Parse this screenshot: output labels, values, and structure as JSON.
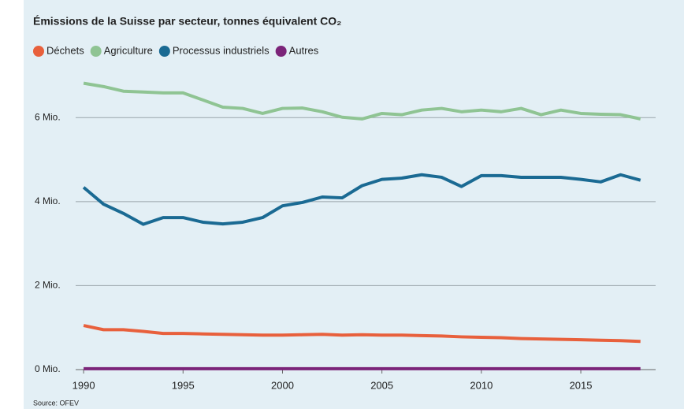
{
  "chart_data": {
    "type": "line",
    "title": "Émissions de la Suisse par secteur, tonnes équivalent CO₂",
    "source": "Source: OFEV",
    "x": [
      1990,
      1991,
      1992,
      1993,
      1994,
      1995,
      1996,
      1997,
      1998,
      1999,
      2000,
      2001,
      2002,
      2003,
      2004,
      2005,
      2006,
      2007,
      2008,
      2009,
      2010,
      2011,
      2012,
      2013,
      2014,
      2015,
      2016,
      2017,
      2018
    ],
    "series": [
      {
        "name": "Déchets",
        "color": "#e8603c",
        "values": [
          1050000,
          950000,
          950000,
          910000,
          860000,
          860000,
          850000,
          840000,
          830000,
          820000,
          820000,
          830000,
          840000,
          820000,
          830000,
          820000,
          820000,
          810000,
          800000,
          780000,
          770000,
          760000,
          740000,
          730000,
          720000,
          710000,
          700000,
          690000,
          670000
        ]
      },
      {
        "name": "Agriculture",
        "color": "#8fc493",
        "values": [
          6820000,
          6740000,
          6630000,
          6610000,
          6590000,
          6590000,
          6420000,
          6250000,
          6220000,
          6100000,
          6220000,
          6230000,
          6140000,
          6010000,
          5970000,
          6100000,
          6070000,
          6180000,
          6220000,
          6140000,
          6180000,
          6140000,
          6220000,
          6070000,
          6180000,
          6100000,
          6080000,
          6070000,
          5970000
        ]
      },
      {
        "name": "Processus industriels",
        "color": "#1a6a93",
        "values": [
          4340000,
          3940000,
          3720000,
          3460000,
          3620000,
          3620000,
          3510000,
          3470000,
          3510000,
          3620000,
          3900000,
          3980000,
          4110000,
          4090000,
          4380000,
          4530000,
          4560000,
          4640000,
          4580000,
          4360000,
          4620000,
          4620000,
          4580000,
          4580000,
          4580000,
          4530000,
          4470000,
          4640000,
          4510000
        ]
      },
      {
        "name": "Autres",
        "color": "#7b2479",
        "values": [
          20000,
          20000,
          20000,
          20000,
          20000,
          20000,
          20000,
          20000,
          20000,
          20000,
          20000,
          20000,
          20000,
          20000,
          20000,
          20000,
          20000,
          20000,
          20000,
          20000,
          20000,
          20000,
          20000,
          20000,
          20000,
          20000,
          20000,
          20000,
          20000
        ]
      }
    ],
    "xlim": [
      1989.6,
      2019
    ],
    "xticks": [
      1990,
      1995,
      2000,
      2005,
      2010,
      2015
    ],
    "ylim": [
      0,
      7000000
    ],
    "yticks": [
      {
        "value": 0,
        "label": "0 Mio."
      },
      {
        "value": 2000000,
        "label": "2 Mio."
      },
      {
        "value": 4000000,
        "label": "4 Mio."
      },
      {
        "value": 6000000,
        "label": "6 Mio."
      }
    ],
    "grid": true
  }
}
